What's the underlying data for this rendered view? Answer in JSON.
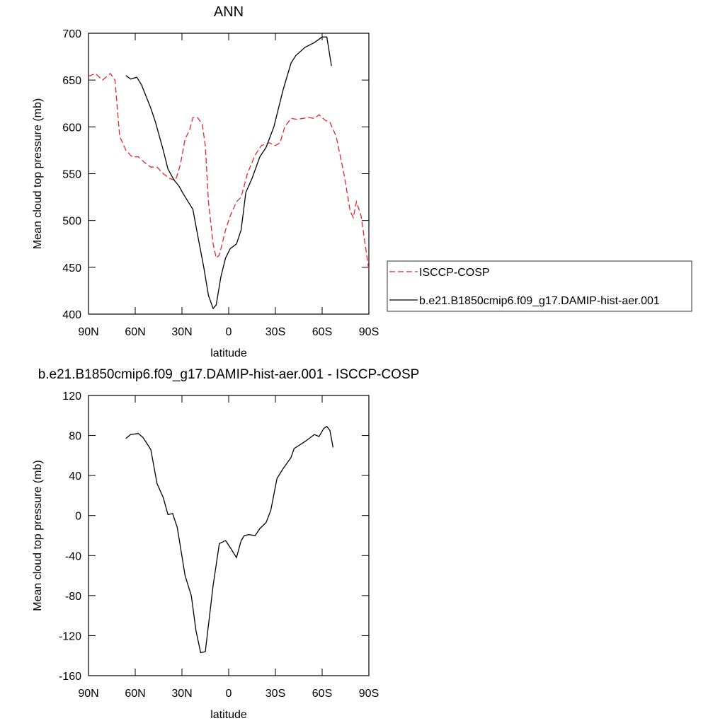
{
  "chart_data": [
    {
      "type": "line",
      "title": "ANN",
      "x_label": "latitude",
      "y_label": "Mean cloud top pressure (mb)",
      "xlim": [
        90,
        -90
      ],
      "xticks": [
        {
          "value": 90,
          "label": "90N"
        },
        {
          "value": 60,
          "label": "60N"
        },
        {
          "value": 30,
          "label": "30N"
        },
        0,
        {
          "value": -30,
          "label": "30S"
        },
        {
          "value": -60,
          "label": "60S"
        },
        {
          "value": -90,
          "label": "90S"
        }
      ],
      "ylim": [
        400,
        700
      ],
      "yticks": [
        400,
        450,
        500,
        550,
        600,
        650,
        700
      ],
      "legend": "right",
      "series": [
        {
          "name": "ISCCP-COSP",
          "color": "#e8242b",
          "dashed": true,
          "x": [
            90,
            85.5,
            81,
            76,
            73,
            70,
            66,
            62,
            58,
            54,
            50,
            46,
            42,
            38,
            34,
            31,
            28,
            25,
            23,
            20,
            17,
            15,
            13,
            10,
            8,
            6,
            2,
            -1,
            -5,
            -8,
            -12,
            -17,
            -21,
            -26,
            -30,
            -33,
            -36,
            -40,
            -44,
            -51,
            -55,
            -58,
            -62,
            -65,
            -69,
            -74,
            -78,
            -80,
            -82,
            -85,
            -88,
            -90
          ],
          "values": [
            654,
            657,
            650,
            657,
            650,
            590,
            575,
            568,
            568,
            562,
            557,
            557,
            550,
            545,
            543,
            560,
            587,
            597,
            610,
            610,
            603,
            580,
            520,
            475,
            460,
            463,
            490,
            505,
            520,
            525,
            550,
            570,
            580,
            583,
            580,
            583,
            600,
            609,
            608,
            610,
            609,
            613,
            607,
            605,
            590,
            550,
            510,
            503,
            520,
            505,
            470,
            447
          ]
        },
        {
          "name": "b.e21.B1850cmip6.f09_g17.DAMIP-hist-aer.001",
          "color": "#000000",
          "dashed": false,
          "x": [
            66,
            63,
            59,
            56,
            50,
            47,
            42,
            39,
            35,
            32,
            29,
            26,
            23,
            20,
            16,
            13,
            10,
            8,
            5,
            2,
            -1,
            -5,
            -8,
            -11,
            -15,
            -20,
            -24,
            -29,
            -35,
            -40,
            -43,
            -49,
            -55,
            -60,
            -63,
            -66
          ],
          "values": [
            655,
            651,
            653,
            645,
            620,
            605,
            575,
            555,
            543,
            537,
            528,
            520,
            512,
            485,
            450,
            420,
            406,
            410,
            440,
            460,
            470,
            475,
            490,
            530,
            545,
            568,
            578,
            600,
            640,
            668,
            676,
            685,
            690,
            696,
            696,
            665
          ]
        }
      ]
    },
    {
      "type": "line",
      "title": "b.e21.B1850cmip6.f09_g17.DAMIP-hist-aer.001 - ISCCP-COSP",
      "x_label": "latitude",
      "y_label": "Mean cloud top pressure (mb)",
      "xlim": [
        90,
        -90
      ],
      "xticks": [
        {
          "value": 90,
          "label": "90N"
        },
        {
          "value": 60,
          "label": "60N"
        },
        {
          "value": 30,
          "label": "30N"
        },
        0,
        {
          "value": -30,
          "label": "30S"
        },
        {
          "value": -60,
          "label": "60S"
        },
        {
          "value": -90,
          "label": "90S"
        }
      ],
      "ylim": [
        -160,
        120
      ],
      "yticks": [
        -160,
        -120,
        -80,
        -40,
        0,
        40,
        80,
        120
      ],
      "color": "#000000",
      "x": [
        66,
        63,
        58,
        55,
        50,
        46,
        42,
        39,
        36,
        33,
        28,
        24,
        21,
        18,
        15,
        10,
        6,
        2,
        -1,
        -5,
        -8,
        -10,
        -13,
        -17,
        -20,
        -24,
        -27,
        -31,
        -35,
        -40,
        -42,
        -49,
        -55,
        -58,
        -61,
        -63,
        -65,
        -67
      ],
      "values": [
        77,
        81,
        82,
        78,
        66,
        32,
        18,
        1,
        2,
        -12,
        -60,
        -80,
        -115,
        -137,
        -136,
        -70,
        -28,
        -25,
        -32,
        -42,
        -25,
        -20,
        -19,
        -20,
        -13,
        -7,
        5,
        37,
        47,
        58,
        67,
        74,
        81,
        79,
        87,
        89,
        85,
        68
      ]
    }
  ]
}
